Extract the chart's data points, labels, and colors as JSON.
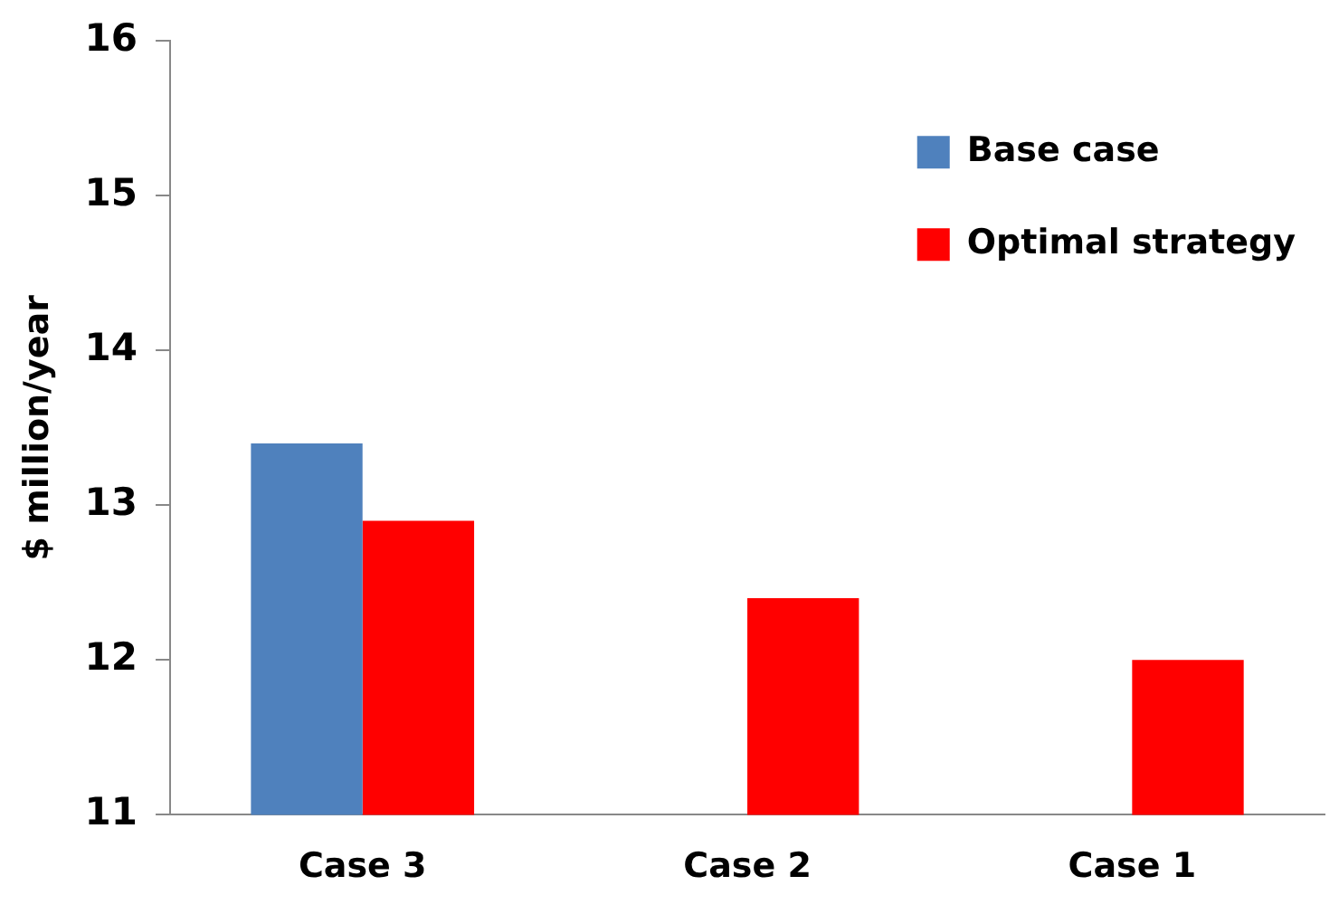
{
  "chart_data": {
    "type": "bar",
    "ylabel": "$ million/year",
    "categories": [
      "Case 3",
      "Case 2",
      "Case 1"
    ],
    "series": [
      {
        "name": "Base case",
        "color": "#4f81bd",
        "values": [
          13.4,
          null,
          null
        ]
      },
      {
        "name": "Optimal strategy",
        "color": "#ff0000",
        "values": [
          12.9,
          12.4,
          12.0
        ]
      }
    ],
    "ylim": [
      11,
      16
    ],
    "yticks": [
      11,
      12,
      13,
      14,
      15,
      16
    ],
    "grid": false,
    "legend": "top right"
  }
}
